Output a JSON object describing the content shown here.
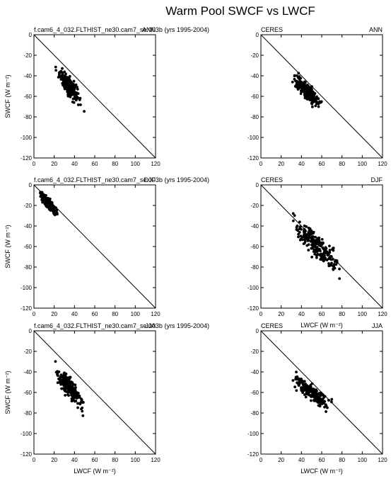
{
  "title": "Warm Pool SWCF vs LWCF",
  "chart_data": [
    {
      "type": "scatter",
      "left_label": "f.cam6_4_032.FLTHIST_ne30.cam7_se.003b (yrs 1995-2004)",
      "right_label": "ANN",
      "ylabel": "SWCF (W m⁻²)",
      "xlabel": "",
      "xlim": [
        0,
        120
      ],
      "ylim": [
        -120,
        0
      ],
      "x_ticks": [
        "0",
        "20",
        "40",
        "60",
        "80",
        "100",
        "120"
      ],
      "y_ticks": [
        "0",
        "-20",
        "-40",
        "-60",
        "-80",
        "-100",
        "-120"
      ],
      "reference_line": "y = -x",
      "cluster": {
        "x_center": 35,
        "y_center": -50,
        "x_spread": 10,
        "y_spread": 16
      }
    },
    {
      "type": "scatter",
      "left_label": "CERES",
      "right_label": "ANN",
      "ylabel": "",
      "xlabel": "",
      "xlim": [
        0,
        120
      ],
      "ylim": [
        -120,
        0
      ],
      "x_ticks": [
        "0",
        "20",
        "40",
        "60",
        "80",
        "100",
        "120"
      ],
      "y_ticks": [
        "0",
        "-20",
        "-40",
        "-60",
        "-80",
        "-100",
        "-120"
      ],
      "reference_line": "y = -x",
      "cluster": {
        "x_center": 45,
        "y_center": -55,
        "x_spread": 12,
        "y_spread": 14
      }
    },
    {
      "type": "scatter",
      "left_label": "f.cam6_4_032.FLTHIST_ne30.cam7_se.003b (yrs 1995-2004)",
      "right_label": "DJF",
      "ylabel": "SWCF (W m⁻²)",
      "xlabel": "",
      "xlim": [
        0,
        120
      ],
      "ylim": [
        -120,
        0
      ],
      "x_ticks": [
        "0",
        "20",
        "40",
        "60",
        "80",
        "100",
        "120"
      ],
      "y_ticks": [
        "0",
        "-20",
        "-40",
        "-60",
        "-80",
        "-100",
        "-120"
      ],
      "reference_line": "y = -x",
      "cluster": {
        "x_center": 14,
        "y_center": -18,
        "x_spread": 7,
        "y_spread": 9
      }
    },
    {
      "type": "scatter",
      "left_label": "CERES",
      "right_label": "DJF",
      "ylabel": "",
      "xlabel": "LWCF (W m⁻²)",
      "xlim": [
        0,
        120
      ],
      "ylim": [
        -120,
        0
      ],
      "x_ticks": [
        "0",
        "20",
        "40",
        "60",
        "80",
        "100",
        "120"
      ],
      "y_ticks": [
        "0",
        "-20",
        "-40",
        "-60",
        "-80",
        "-100",
        "-120"
      ],
      "reference_line": "y = -x",
      "cluster": {
        "x_center": 55,
        "y_center": -60,
        "x_spread": 20,
        "y_spread": 22
      }
    },
    {
      "type": "scatter",
      "left_label": "f.cam6_4_032.FLTHIST_ne30.cam7_se.003b (yrs 1995-2004)",
      "right_label": "JJA",
      "ylabel": "SWCF (W m⁻²)",
      "xlabel": "LWCF (W m⁻²)",
      "xlim": [
        0,
        120
      ],
      "ylim": [
        -120,
        0
      ],
      "x_ticks": [
        "0",
        "20",
        "40",
        "60",
        "80",
        "100",
        "120"
      ],
      "y_ticks": [
        "0",
        "-20",
        "-40",
        "-60",
        "-80",
        "-100",
        "-120"
      ],
      "reference_line": "y = -x",
      "cluster": {
        "x_center": 35,
        "y_center": -55,
        "x_spread": 12,
        "y_spread": 18
      }
    },
    {
      "type": "scatter",
      "left_label": "CERES",
      "right_label": "JJA",
      "ylabel": "",
      "xlabel": "LWCF (W m⁻²)",
      "xlim": [
        0,
        120
      ],
      "ylim": [
        -120,
        0
      ],
      "x_ticks": [
        "0",
        "20",
        "40",
        "60",
        "80",
        "100",
        "120"
      ],
      "y_ticks": [
        "0",
        "-20",
        "-40",
        "-60",
        "-80",
        "-100",
        "-120"
      ],
      "reference_line": "y = -x",
      "cluster": {
        "x_center": 50,
        "y_center": -60,
        "x_spread": 15,
        "y_spread": 14
      }
    }
  ]
}
